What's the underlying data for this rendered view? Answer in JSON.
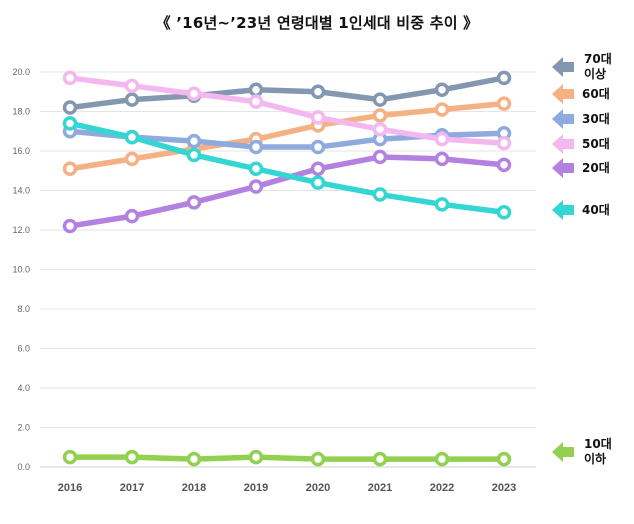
{
  "title": "《 ’16년~’23년 연령대별 1인세대 비중 추이 》",
  "chart_data": {
    "type": "line",
    "title": "《 ’16년~’23년 연령대별 1인세대 비중 추이 》",
    "xlabel": "",
    "ylabel": "",
    "ylim": [
      0,
      20
    ],
    "yticks": [
      "0.0",
      "2.0",
      "4.0",
      "6.0",
      "8.0",
      "10.0",
      "12.0",
      "14.0",
      "16.0",
      "18.0",
      "20.0"
    ],
    "grid": true,
    "legend_position": "right",
    "x": [
      "2016",
      "2017",
      "2018",
      "2019",
      "2020",
      "2021",
      "2022",
      "2023"
    ],
    "series": [
      {
        "name": "70대 이상",
        "label_lines": [
          "70대",
          "이상"
        ],
        "color": "#8497B0",
        "values": [
          18.2,
          18.6,
          18.8,
          19.1,
          19.0,
          18.6,
          19.1,
          19.7
        ]
      },
      {
        "name": "60대",
        "label_lines": [
          "60대"
        ],
        "color": "#F4B183",
        "values": [
          15.1,
          15.6,
          16.1,
          16.6,
          17.3,
          17.8,
          18.1,
          18.4
        ]
      },
      {
        "name": "30대",
        "label_lines": [
          "30대"
        ],
        "color": "#8FAADC",
        "values": [
          17.0,
          16.7,
          16.5,
          16.2,
          16.2,
          16.6,
          16.8,
          16.9
        ]
      },
      {
        "name": "50대",
        "label_lines": [
          "50대"
        ],
        "color": "#F4B8F0",
        "values": [
          19.7,
          19.3,
          18.9,
          18.5,
          17.7,
          17.1,
          16.6,
          16.4
        ]
      },
      {
        "name": "20대",
        "label_lines": [
          "20대"
        ],
        "color": "#B381E0",
        "values": [
          12.2,
          12.7,
          13.4,
          14.2,
          15.1,
          15.7,
          15.6,
          15.3
        ]
      },
      {
        "name": "40대",
        "label_lines": [
          "40대"
        ],
        "color": "#33D6D2",
        "values": [
          17.4,
          16.7,
          15.8,
          15.1,
          14.4,
          13.8,
          13.3,
          12.9
        ]
      },
      {
        "name": "10대 이하",
        "label_lines": [
          "10대",
          "이하"
        ],
        "color": "#92D050",
        "values": [
          0.5,
          0.5,
          0.4,
          0.5,
          0.4,
          0.4,
          0.4,
          0.4
        ]
      }
    ]
  }
}
